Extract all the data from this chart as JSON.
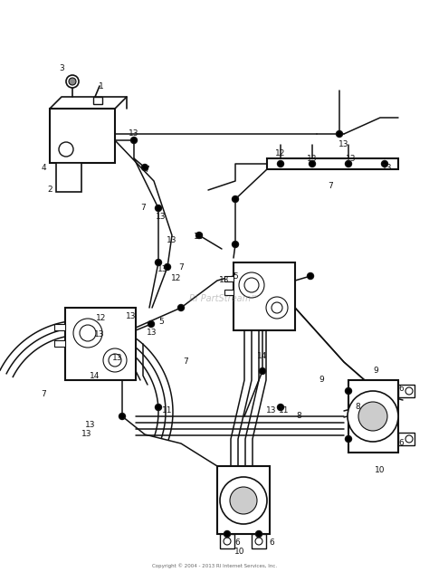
{
  "bg_color": "#ffffff",
  "fig_width": 4.74,
  "fig_height": 6.32,
  "dpi": 100,
  "watermark": "RI PartStream™",
  "copyright": "Copyright © 2004 - 2013 RI Internet Services, Inc."
}
